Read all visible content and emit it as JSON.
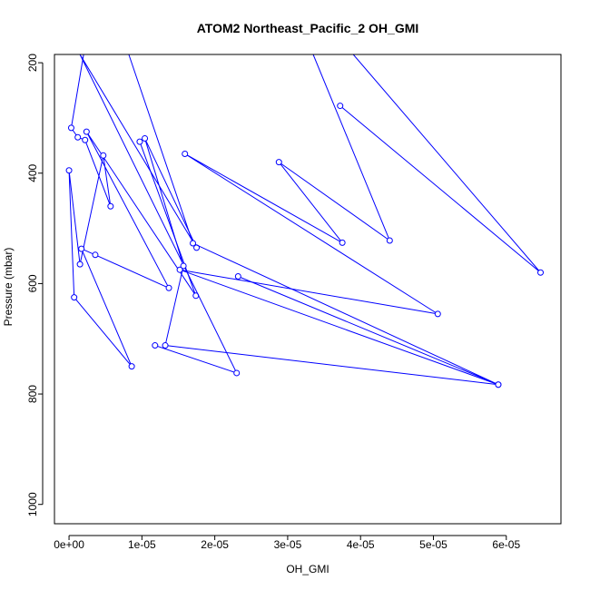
{
  "chart_data": {
    "type": "line",
    "title": "ATOM2 Northeast_Pacific_2 OH_GMI",
    "xlabel": "OH_GMI",
    "ylabel": "Pressure (mbar)",
    "xlim": [
      -2e-06,
      6.75e-05
    ],
    "ylim": [
      1035,
      185
    ],
    "y_reversed": true,
    "x_ticks": [
      0,
      1e-05,
      2e-05,
      3e-05,
      4e-05,
      5e-05,
      6e-05
    ],
    "x_tick_labels": [
      "0e+00",
      "1e-05",
      "2e-05",
      "3e-05",
      "4e-05",
      "5e-05",
      "6e-05"
    ],
    "y_ticks": [
      200,
      400,
      600,
      800,
      1000
    ],
    "y_tick_labels": [
      "200",
      "400",
      "600",
      "800",
      "1000"
    ],
    "series_color": "#0000ff",
    "grid": false,
    "legend": "none",
    "series": [
      {
        "x": [
          2e-06,
          3e-07,
          1.2e-06,
          2.2e-06,
          5.7e-06,
          4.7e-06,
          1.5e-06,
          0.0,
          7e-07,
          8.6e-06,
          1.7e-06,
          3.6e-06,
          1.37e-05,
          2.4e-06,
          1.74e-05,
          9.7e-06
        ],
        "y": [
          185,
          318,
          335,
          340,
          460,
          368,
          565,
          395,
          625,
          750,
          537,
          548,
          608,
          325,
          622,
          343
        ]
      },
      {
        "x": [
          1.18e-05,
          2.3e-05,
          1.5e-06,
          1.75e-05,
          1.04e-05,
          1.57e-05,
          1.32e-05,
          5.89e-05,
          1.52e-05,
          5.06e-05,
          1.59e-05,
          3.75e-05,
          2.88e-05,
          4.4e-05,
          3.35e-05
        ],
        "y": [
          712,
          762,
          185,
          535,
          337,
          568,
          712,
          783,
          575,
          655,
          365,
          526,
          380,
          522,
          185
        ]
      },
      {
        "x": [
          3.72e-05,
          6.47e-05,
          3.9e-05
        ],
        "y": [
          278,
          580,
          185
        ]
      },
      {
        "x": [
          2.32e-05,
          5.89e-05,
          1.7e-05,
          8.2e-06
        ],
        "y": [
          587,
          783,
          527,
          185
        ]
      }
    ]
  }
}
